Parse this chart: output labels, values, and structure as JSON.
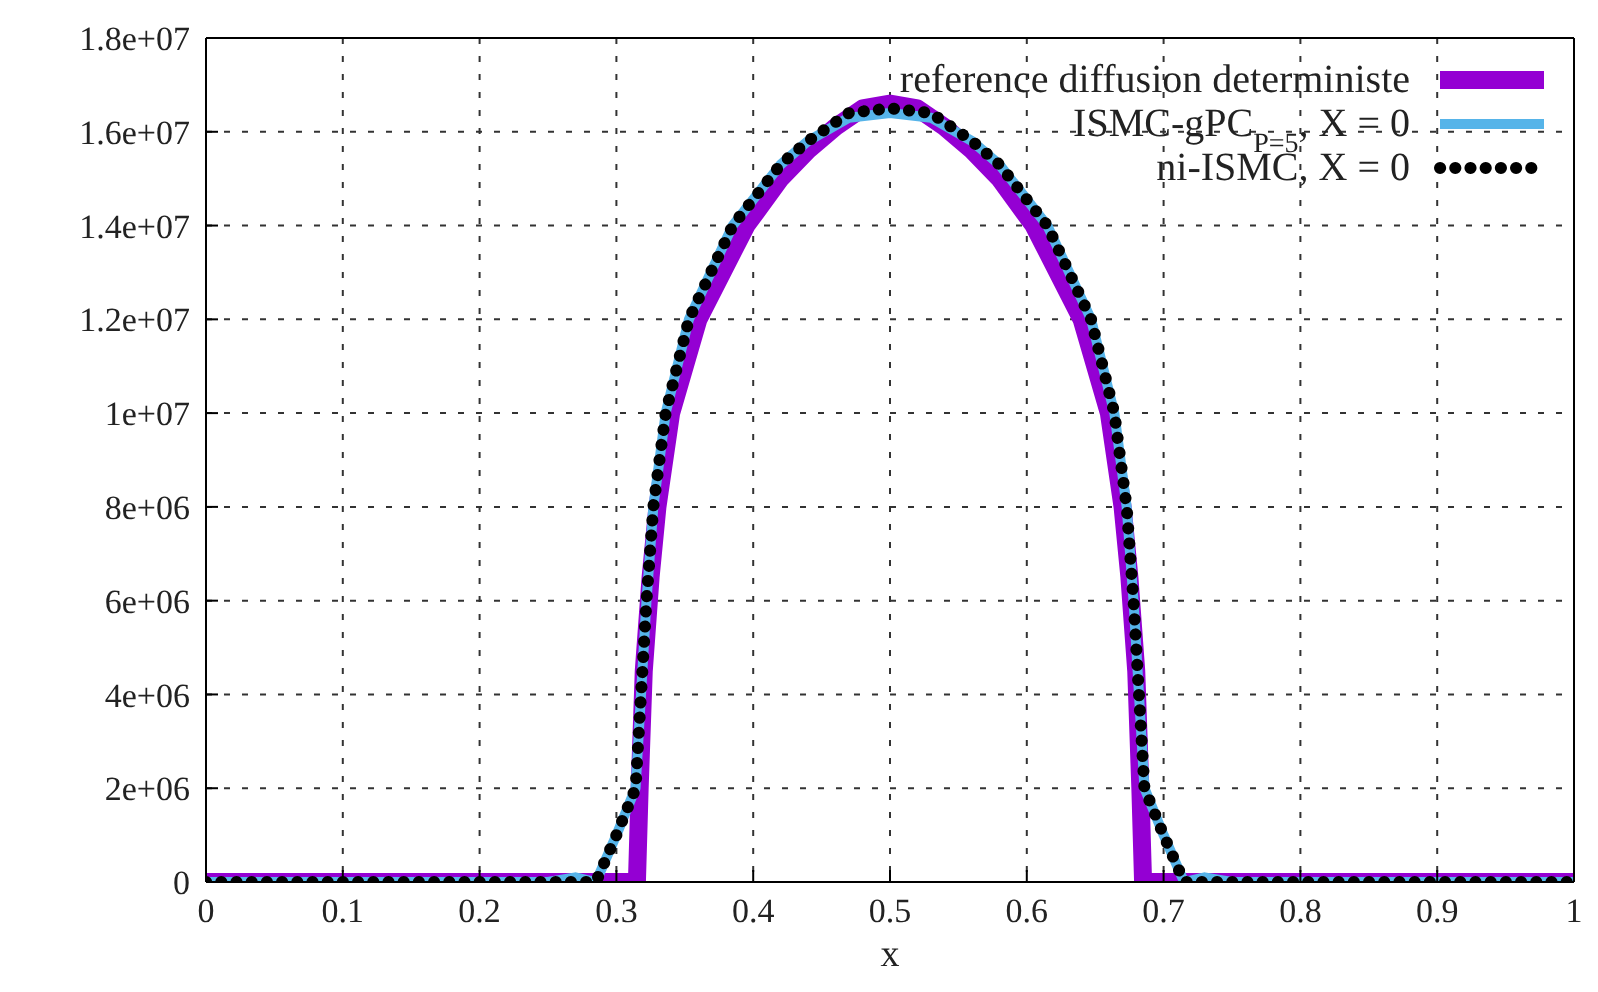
{
  "chart_data": {
    "type": "line",
    "xlabel": "x",
    "xlim": [
      0,
      1
    ],
    "xticks": [
      0,
      0.1,
      0.2,
      0.3,
      0.4,
      0.5,
      0.6,
      0.7,
      0.8,
      0.9,
      1
    ],
    "ylim": [
      0,
      18000000
    ],
    "yticks": [
      0,
      {
        "value": 2000000,
        "label": "2e+06"
      },
      {
        "value": 4000000,
        "label": "4e+06"
      },
      {
        "value": 6000000,
        "label": "6e+06"
      },
      {
        "value": 8000000,
        "label": "8e+06"
      },
      {
        "value": 10000000,
        "label": "1e+07"
      },
      {
        "value": 12000000,
        "label": "1.2e+07"
      },
      {
        "value": 14000000,
        "label": "1.4e+07"
      },
      {
        "value": 16000000,
        "label": "1.6e+07"
      },
      {
        "value": 18000000,
        "label": "1.8e+07"
      }
    ],
    "grid": true,
    "legend": "top right",
    "series": [
      {
        "name": "reference diffusion deterministe",
        "color": "#9400d3",
        "line_style": "solid",
        "x": [
          0,
          0.31,
          0.315,
          0.317,
          0.32,
          0.325,
          0.33,
          0.34,
          0.36,
          0.395,
          0.42,
          0.44,
          0.46,
          0.48,
          0.5,
          0.52,
          0.54,
          0.56,
          0.58,
          0.605,
          0.64,
          0.66,
          0.67,
          0.675,
          0.68,
          0.683,
          0.685,
          1
        ],
        "values": [
          0,
          0,
          0,
          2000000,
          4500000,
          6500000,
          8000000,
          10000000,
          12000000,
          14000000,
          15000000,
          15600000,
          16100000,
          16500000,
          16600000,
          16500000,
          16100000,
          15600000,
          15000000,
          14000000,
          12000000,
          10000000,
          8000000,
          6500000,
          4500000,
          2000000,
          0,
          0
        ]
      },
      {
        "name": "ISMC-gPC$_{P=5}$, X = 0",
        "color": "#56b4e9",
        "line_style": "solid",
        "x": [
          0,
          0.25,
          0.27,
          0.285,
          0.3,
          0.314,
          0.318,
          0.322,
          0.327,
          0.336,
          0.353,
          0.385,
          0.42,
          0.44,
          0.47,
          0.5,
          0.53,
          0.56,
          0.58,
          0.615,
          0.647,
          0.664,
          0.673,
          0.678,
          0.682,
          0.686,
          0.7,
          0.715,
          0.73,
          0.75,
          1
        ],
        "values": [
          0,
          0,
          100000,
          0,
          1000000,
          2000000,
          4000000,
          6000000,
          8000000,
          10000000,
          12000000,
          14000000,
          15300000,
          15800000,
          16300000,
          16400000,
          16300000,
          15800000,
          15300000,
          14000000,
          12000000,
          10000000,
          8000000,
          6000000,
          4000000,
          2000000,
          1000000,
          0,
          100000,
          0,
          0
        ]
      },
      {
        "name": "ni-ISMC, X = 0",
        "color": "#000000",
        "line_style": "dotted",
        "x": [
          0,
          0.285,
          0.3,
          0.314,
          0.318,
          0.322,
          0.327,
          0.336,
          0.353,
          0.385,
          0.42,
          0.44,
          0.47,
          0.5,
          0.53,
          0.56,
          0.58,
          0.615,
          0.647,
          0.664,
          0.673,
          0.678,
          0.682,
          0.686,
          0.7,
          0.715,
          1
        ],
        "values": [
          0,
          0,
          1000000,
          2000000,
          4000000,
          6000000,
          8000000,
          10000000,
          12000000,
          14000000,
          15300000,
          15800000,
          16400000,
          16500000,
          16400000,
          15800000,
          15300000,
          14000000,
          12000000,
          10000000,
          8000000,
          6000000,
          4000000,
          2000000,
          1000000,
          0,
          0
        ]
      }
    ]
  }
}
